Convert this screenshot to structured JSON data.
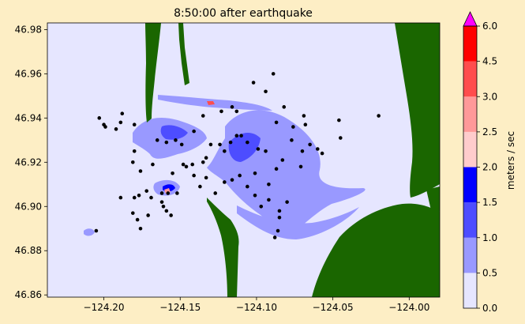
{
  "chart_data": {
    "type": "heatmap",
    "title": "8:50:00 after earthquake",
    "xlim": [
      -124.237,
      -123.98
    ],
    "ylim": [
      46.859,
      46.983
    ],
    "x_ticks": [
      -124.2,
      -124.15,
      -124.1,
      -124.05,
      -124.0
    ],
    "x_tick_labels": [
      "−124.20",
      "−124.15",
      "−124.10",
      "−124.05",
      "−124.00"
    ],
    "y_ticks": [
      46.86,
      46.88,
      46.9,
      46.92,
      46.94,
      46.96,
      46.98
    ],
    "y_tick_labels": [
      "46.86",
      "46.88",
      "46.90",
      "46.92",
      "46.94",
      "46.96",
      "46.98"
    ],
    "colorbar": {
      "label": "meters / sec",
      "levels": [
        0.0,
        0.5,
        1.0,
        1.5,
        2.0,
        2.5,
        3.0,
        4.5,
        6.0
      ],
      "level_labels": [
        "0.0",
        "0.5",
        "1.0",
        "1.5",
        "2.0",
        "2.5",
        "3.0",
        "4.5",
        "6.0"
      ],
      "colors": [
        "#e6e6ff",
        "#9999ff",
        "#4d4dff",
        "#0000ff",
        "#ffcccc",
        "#ff9999",
        "#ff4d4d",
        "#ff0000"
      ],
      "extend_max_color": "#ff00ff"
    },
    "colors": {
      "background": "#fdeec5",
      "water": "#e6e6ff",
      "land": "#1a6600",
      "gauge": "#000000"
    },
    "gauges": [
      [
        -124.203,
        46.94
      ],
      [
        -124.2,
        46.937
      ],
      [
        -124.199,
        46.936
      ],
      [
        -124.192,
        46.935
      ],
      [
        -124.189,
        46.938
      ],
      [
        -124.188,
        46.942
      ],
      [
        -124.18,
        46.937
      ],
      [
        -124.18,
        46.925
      ],
      [
        -124.181,
        46.92
      ],
      [
        -124.176,
        46.916
      ],
      [
        -124.177,
        46.905
      ],
      [
        -124.169,
        46.904
      ],
      [
        -124.162,
        46.906
      ],
      [
        -124.158,
        46.906
      ],
      [
        -124.162,
        46.902
      ],
      [
        -124.159,
        46.898
      ],
      [
        -124.152,
        46.906
      ],
      [
        -124.155,
        46.915
      ],
      [
        -124.146,
        46.918
      ],
      [
        -124.141,
        46.914
      ],
      [
        -124.135,
        46.92
      ],
      [
        -124.133,
        46.922
      ],
      [
        -124.13,
        46.928
      ],
      [
        -124.124,
        46.928
      ],
      [
        -124.121,
        46.925
      ],
      [
        -124.117,
        46.929
      ],
      [
        -124.11,
        46.932
      ],
      [
        -124.106,
        46.929
      ],
      [
        -124.099,
        46.926
      ],
      [
        -124.094,
        46.925
      ],
      [
        -124.101,
        46.915
      ],
      [
        -124.092,
        46.91
      ],
      [
        -124.087,
        46.917
      ],
      [
        -124.083,
        46.921
      ],
      [
        -124.077,
        46.93
      ],
      [
        -124.076,
        46.936
      ],
      [
        -124.068,
        46.937
      ],
      [
        -124.07,
        46.925
      ],
      [
        -124.065,
        46.928
      ],
      [
        -124.06,
        46.926
      ],
      [
        -124.057,
        46.924
      ],
      [
        -124.046,
        46.939
      ],
      [
        -124.045,
        46.931
      ],
      [
        -124.02,
        46.941
      ],
      [
        -124.08,
        46.902
      ],
      [
        -124.085,
        46.898
      ],
      [
        -124.085,
        46.895
      ],
      [
        -124.086,
        46.889
      ],
      [
        -124.088,
        46.886
      ],
      [
        -124.092,
        46.903
      ],
      [
        -124.097,
        46.9
      ],
      [
        -124.101,
        46.905
      ],
      [
        -124.106,
        46.909
      ],
      [
        -124.111,
        46.914
      ],
      [
        -124.116,
        46.912
      ],
      [
        -124.121,
        46.911
      ],
      [
        -124.127,
        46.906
      ],
      [
        -124.133,
        46.913
      ],
      [
        -124.137,
        46.909
      ],
      [
        -124.142,
        46.919
      ],
      [
        -124.148,
        46.919
      ],
      [
        -124.149,
        46.928
      ],
      [
        -124.153,
        46.93
      ],
      [
        -124.159,
        46.929
      ],
      [
        -124.165,
        46.93
      ],
      [
        -124.168,
        46.919
      ],
      [
        -124.172,
        46.907
      ],
      [
        -124.18,
        46.904
      ],
      [
        -124.189,
        46.904
      ],
      [
        -124.181,
        46.897
      ],
      [
        -124.178,
        46.894
      ],
      [
        -124.176,
        46.89
      ],
      [
        -124.171,
        46.896
      ],
      [
        -124.161,
        46.9
      ],
      [
        -124.156,
        46.896
      ],
      [
        -124.141,
        46.934
      ],
      [
        -124.135,
        46.941
      ],
      [
        -124.123,
        46.943
      ],
      [
        -124.116,
        46.945
      ],
      [
        -124.113,
        46.943
      ],
      [
        -124.102,
        46.956
      ],
      [
        -124.094,
        46.952
      ],
      [
        -124.082,
        46.945
      ],
      [
        -124.087,
        46.938
      ],
      [
        -124.069,
        46.941
      ],
      [
        -124.071,
        46.918
      ],
      [
        -124.089,
        46.96
      ],
      [
        -124.113,
        46.932
      ],
      [
        -124.205,
        46.889
      ]
    ]
  }
}
